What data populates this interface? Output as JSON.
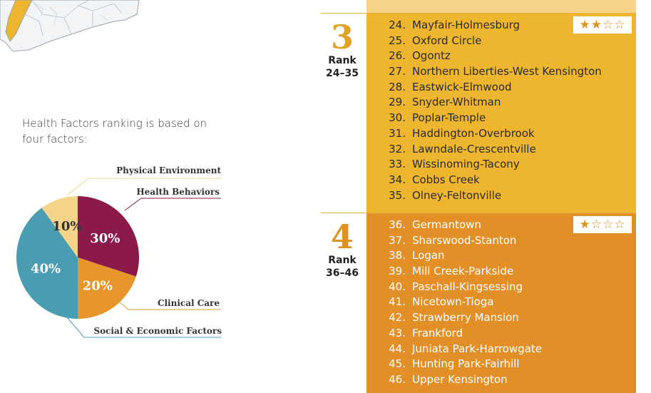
{
  "intro_text": "Health Factors ranking is based on four factors:",
  "chart_data": {
    "type": "pie",
    "title": "",
    "slices": [
      {
        "label": "Physical Environment",
        "value": 10,
        "display": "10%",
        "color": "#f6d58a"
      },
      {
        "label": "Health Behaviors",
        "value": 30,
        "display": "30%",
        "color": "#8b1a4a"
      },
      {
        "label": "Clinical Care",
        "value": 20,
        "display": "20%",
        "color": "#e6962a"
      },
      {
        "label": "Social & Economic Factors",
        "value": 40,
        "display": "40%",
        "color": "#4a9db0"
      }
    ]
  },
  "tiers": [
    {
      "number": "3",
      "rank_label": "Rank",
      "range": "24–35",
      "stars_filled": 2,
      "stars_total": 4,
      "color": "#eeb52e",
      "number_color": "#e0a325",
      "items": [
        {
          "num": "24.",
          "name": "Mayfair-Holmesburg"
        },
        {
          "num": "25.",
          "name": "Oxford Circle"
        },
        {
          "num": "26.",
          "name": "Ogontz"
        },
        {
          "num": "27.",
          "name": "Northern Liberties-West Kensington"
        },
        {
          "num": "28.",
          "name": "Eastwick-Elmwood"
        },
        {
          "num": "29.",
          "name": "Snyder-Whitman"
        },
        {
          "num": "30.",
          "name": "Poplar-Temple"
        },
        {
          "num": "31.",
          "name": "Haddington-Overbrook"
        },
        {
          "num": "32.",
          "name": "Lawndale-Crescentville"
        },
        {
          "num": "33.",
          "name": "Wissinoming-Tacony"
        },
        {
          "num": "34.",
          "name": "Cobbs Creek"
        },
        {
          "num": "35.",
          "name": "Olney-Feltonville"
        }
      ]
    },
    {
      "number": "4",
      "rank_label": "Rank",
      "range": "36–46",
      "stars_filled": 1,
      "stars_total": 4,
      "color": "#e38f27",
      "number_color": "#e0921f",
      "items": [
        {
          "num": "36.",
          "name": "Germantown"
        },
        {
          "num": "37.",
          "name": "Sharswood-Stanton"
        },
        {
          "num": "38.",
          "name": "Logan"
        },
        {
          "num": "39.",
          "name": "Mill Creek-Parkside"
        },
        {
          "num": "40.",
          "name": "Paschall-Kingsessing"
        },
        {
          "num": "41.",
          "name": "Nicetown-Tioga"
        },
        {
          "num": "42.",
          "name": "Strawberry Mansion"
        },
        {
          "num": "43.",
          "name": "Frankford"
        },
        {
          "num": "44.",
          "name": "Juniata Park-Harrowgate"
        },
        {
          "num": "45.",
          "name": "Hunting Park-Fairhill"
        },
        {
          "num": "46.",
          "name": "Upper Kensington"
        }
      ]
    }
  ]
}
